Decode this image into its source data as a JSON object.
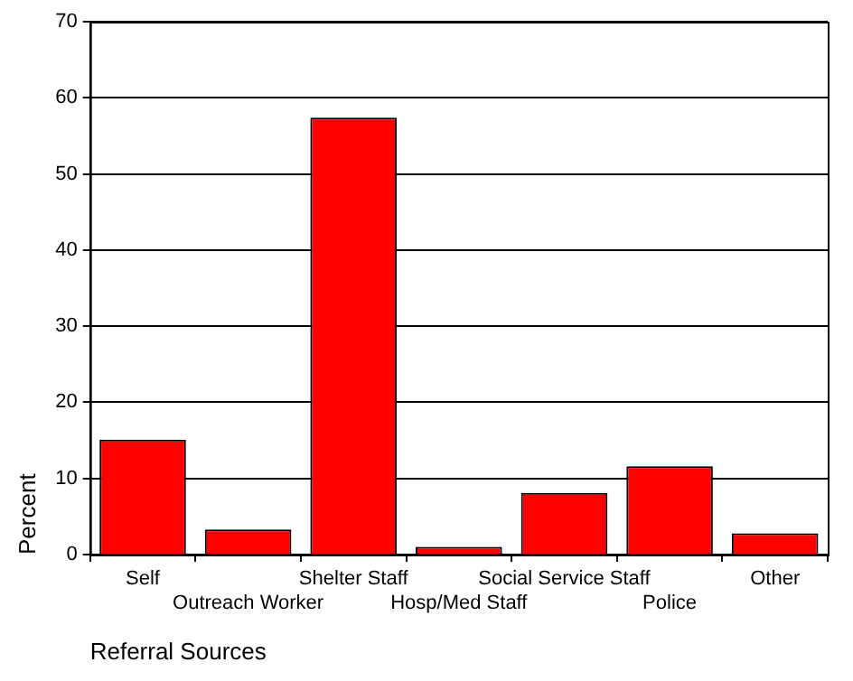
{
  "chart_data": {
    "type": "bar",
    "xlabel": "Referral Sources",
    "ylabel": "Percent",
    "categories": [
      "Self",
      "Outreach Worker",
      "Shelter Staff",
      "Hosp/Med Staff",
      "Social Service Staff",
      "Police",
      "Other"
    ],
    "values": [
      15.1,
      3.3,
      57.4,
      1.0,
      8.1,
      11.6,
      2.8
    ],
    "color": "#ff0000",
    "ylim": [
      0,
      70
    ],
    "yticks": [
      0,
      10,
      20,
      30,
      40,
      50,
      60,
      70
    ],
    "grid": "y",
    "legend": false
  }
}
